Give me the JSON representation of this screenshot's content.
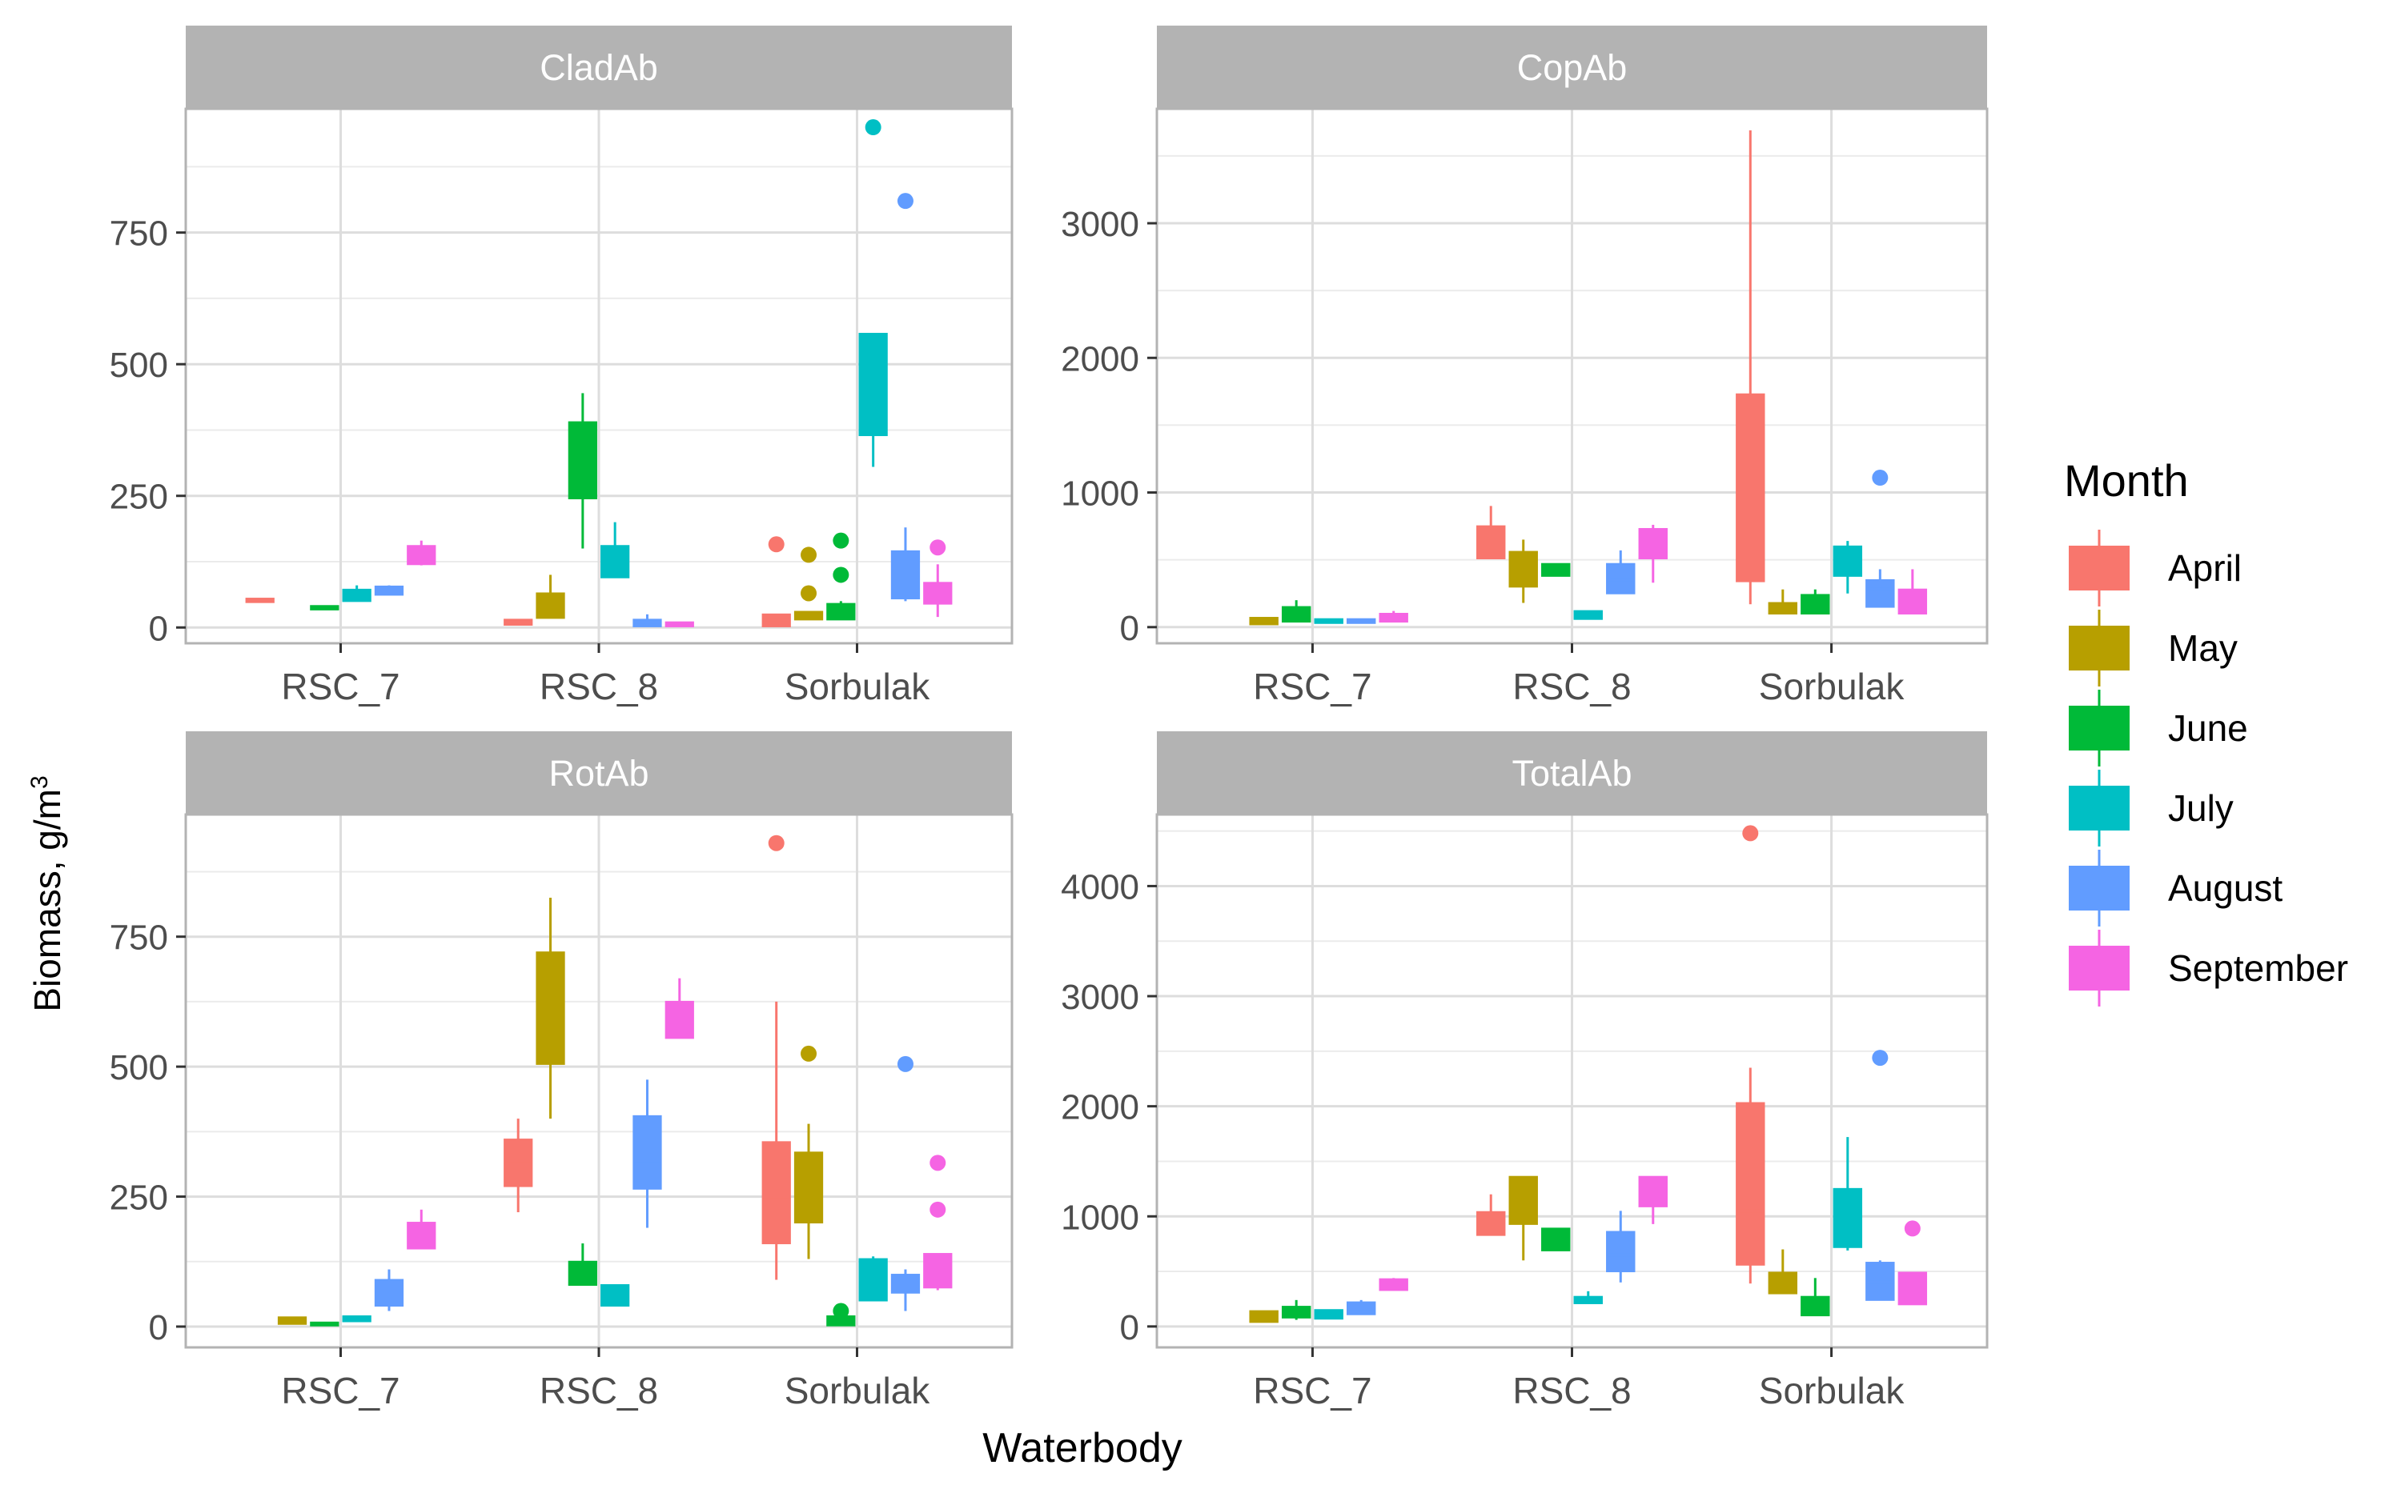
{
  "ylabel": "Biomass, g/m",
  "ylabel_superscript": "3",
  "xlabel": "Waterbody",
  "legend": {
    "title": "Month",
    "position": "right",
    "items": [
      {
        "label": "April",
        "color": "#F8766D"
      },
      {
        "label": "May",
        "color": "#B79F00"
      },
      {
        "label": "June",
        "color": "#00BA38"
      },
      {
        "label": "July",
        "color": "#00BFC4"
      },
      {
        "label": "August",
        "color": "#619CFF"
      },
      {
        "label": "September",
        "color": "#F564E3"
      }
    ]
  },
  "chart_data": [
    {
      "type": "boxplot",
      "title": "CladAb",
      "categories": [
        "RSC_7",
        "RSC_8",
        "Sorbulak"
      ],
      "yticks": [
        0,
        250,
        500,
        750
      ],
      "ylim": [
        -30,
        985
      ],
      "grid": true,
      "boxes": [
        {
          "category": "RSC_7",
          "month": "April",
          "min": 48,
          "q1": 48,
          "median": 52,
          "q3": 55,
          "max": 55,
          "outliers": []
        },
        {
          "category": "RSC_7",
          "month": "June",
          "min": 34,
          "q1": 34,
          "median": 37,
          "q3": 41,
          "max": 41,
          "outliers": []
        },
        {
          "category": "RSC_7",
          "month": "July",
          "min": 50,
          "q1": 50,
          "median": 60,
          "q3": 72,
          "max": 80,
          "outliers": []
        },
        {
          "category": "RSC_7",
          "month": "August",
          "min": 62,
          "q1": 62,
          "median": 68,
          "q3": 78,
          "max": 80,
          "outliers": []
        },
        {
          "category": "RSC_7",
          "month": "September",
          "min": 118,
          "q1": 120,
          "median": 130,
          "q3": 155,
          "max": 165,
          "outliers": []
        },
        {
          "category": "RSC_8",
          "month": "April",
          "min": 5,
          "q1": 5,
          "median": 10,
          "q3": 15,
          "max": 15,
          "outliers": []
        },
        {
          "category": "RSC_8",
          "month": "May",
          "min": 18,
          "q1": 18,
          "median": 22,
          "q3": 65,
          "max": 100,
          "outliers": []
        },
        {
          "category": "RSC_8",
          "month": "June",
          "min": 150,
          "q1": 245,
          "median": 322,
          "q3": 390,
          "max": 445,
          "outliers": []
        },
        {
          "category": "RSC_8",
          "month": "July",
          "min": 95,
          "q1": 95,
          "median": 120,
          "q3": 155,
          "max": 200,
          "outliers": []
        },
        {
          "category": "RSC_8",
          "month": "August",
          "min": 2,
          "q1": 2,
          "median": 10,
          "q3": 15,
          "max": 25,
          "outliers": []
        },
        {
          "category": "RSC_8",
          "month": "September",
          "min": 2,
          "q1": 2,
          "median": 5,
          "q3": 10,
          "max": 10,
          "outliers": []
        },
        {
          "category": "Sorbulak",
          "month": "April",
          "min": 2,
          "q1": 2,
          "median": 15,
          "q3": 25,
          "max": 25,
          "outliers": [
            158
          ]
        },
        {
          "category": "Sorbulak",
          "month": "May",
          "min": 15,
          "q1": 15,
          "median": 25,
          "q3": 30,
          "max": 30,
          "outliers": [
            138,
            65
          ]
        },
        {
          "category": "Sorbulak",
          "month": "June",
          "min": 15,
          "q1": 15,
          "median": 30,
          "q3": 45,
          "max": 50,
          "outliers": [
            165,
            100
          ]
        },
        {
          "category": "Sorbulak",
          "month": "July",
          "min": 305,
          "q1": 365,
          "median": 420,
          "q3": 558,
          "max": 558,
          "outliers": [
            950
          ]
        },
        {
          "category": "Sorbulak",
          "month": "August",
          "min": 50,
          "q1": 55,
          "median": 100,
          "q3": 145,
          "max": 190,
          "outliers": [
            810
          ]
        },
        {
          "category": "Sorbulak",
          "month": "September",
          "min": 20,
          "q1": 45,
          "median": 70,
          "q3": 85,
          "max": 120,
          "outliers": [
            152
          ]
        }
      ]
    },
    {
      "type": "boxplot",
      "title": "CopAb",
      "categories": [
        "RSC_7",
        "RSC_8",
        "Sorbulak"
      ],
      "yticks": [
        0,
        1000,
        2000,
        3000
      ],
      "ylim": [
        -120,
        3850
      ],
      "grid": true,
      "boxes": [
        {
          "category": "RSC_7",
          "month": "May",
          "min": 20,
          "q1": 20,
          "median": 40,
          "q3": 70,
          "max": 70,
          "outliers": []
        },
        {
          "category": "RSC_7",
          "month": "June",
          "min": 40,
          "q1": 40,
          "median": 90,
          "q3": 150,
          "max": 200,
          "outliers": []
        },
        {
          "category": "RSC_7",
          "month": "July",
          "min": 30,
          "q1": 30,
          "median": 50,
          "q3": 60,
          "max": 60,
          "outliers": []
        },
        {
          "category": "RSC_7",
          "month": "August",
          "min": 30,
          "q1": 30,
          "median": 50,
          "q3": 60,
          "max": 60,
          "outliers": []
        },
        {
          "category": "RSC_7",
          "month": "September",
          "min": 40,
          "q1": 40,
          "median": 70,
          "q3": 100,
          "max": 120,
          "outliers": []
        },
        {
          "category": "RSC_8",
          "month": "April",
          "min": 510,
          "q1": 510,
          "median": 540,
          "q3": 750,
          "max": 900,
          "outliers": []
        },
        {
          "category": "RSC_8",
          "month": "May",
          "min": 180,
          "q1": 300,
          "median": 440,
          "q3": 560,
          "max": 650,
          "outliers": []
        },
        {
          "category": "RSC_8",
          "month": "June",
          "min": 380,
          "q1": 380,
          "median": 420,
          "q3": 470,
          "max": 470,
          "outliers": []
        },
        {
          "category": "RSC_8",
          "month": "July",
          "min": 60,
          "q1": 60,
          "median": 80,
          "q3": 120,
          "max": 120,
          "outliers": []
        },
        {
          "category": "RSC_8",
          "month": "August",
          "min": 250,
          "q1": 250,
          "median": 350,
          "q3": 470,
          "max": 570,
          "outliers": []
        },
        {
          "category": "RSC_8",
          "month": "September",
          "min": 330,
          "q1": 510,
          "median": 560,
          "q3": 730,
          "max": 760,
          "outliers": []
        },
        {
          "category": "Sorbulak",
          "month": "April",
          "min": 170,
          "q1": 340,
          "median": 1000,
          "q3": 1730,
          "max": 3690,
          "outliers": []
        },
        {
          "category": "Sorbulak",
          "month": "May",
          "min": 100,
          "q1": 100,
          "median": 150,
          "q3": 180,
          "max": 280,
          "outliers": []
        },
        {
          "category": "Sorbulak",
          "month": "June",
          "min": 100,
          "q1": 100,
          "median": 180,
          "q3": 240,
          "max": 280,
          "outliers": []
        },
        {
          "category": "Sorbulak",
          "month": "July",
          "min": 250,
          "q1": 380,
          "median": 520,
          "q3": 600,
          "max": 640,
          "outliers": []
        },
        {
          "category": "Sorbulak",
          "month": "August",
          "min": 150,
          "q1": 150,
          "median": 280,
          "q3": 350,
          "max": 430,
          "outliers": [
            1110
          ]
        },
        {
          "category": "Sorbulak",
          "month": "September",
          "min": 100,
          "q1": 100,
          "median": 200,
          "q3": 280,
          "max": 430,
          "outliers": []
        }
      ]
    },
    {
      "type": "boxplot",
      "title": "RotAb",
      "categories": [
        "RSC_7",
        "RSC_8",
        "Sorbulak"
      ],
      "yticks": [
        0,
        250,
        500,
        750
      ],
      "ylim": [
        -40,
        985
      ],
      "grid": true,
      "boxes": [
        {
          "category": "RSC_7",
          "month": "May",
          "min": 5,
          "q1": 5,
          "median": 12,
          "q3": 18,
          "max": 18,
          "outliers": []
        },
        {
          "category": "RSC_7",
          "month": "June",
          "min": 2,
          "q1": 2,
          "median": 5,
          "q3": 8,
          "max": 8,
          "outliers": []
        },
        {
          "category": "RSC_7",
          "month": "July",
          "min": 10,
          "q1": 10,
          "median": 15,
          "q3": 20,
          "max": 20,
          "outliers": []
        },
        {
          "category": "RSC_7",
          "month": "August",
          "min": 30,
          "q1": 40,
          "median": 60,
          "q3": 90,
          "max": 110,
          "outliers": []
        },
        {
          "category": "RSC_7",
          "month": "September",
          "min": 150,
          "q1": 150,
          "median": 180,
          "q3": 200,
          "max": 225,
          "outliers": []
        },
        {
          "category": "RSC_8",
          "month": "April",
          "min": 220,
          "q1": 270,
          "median": 320,
          "q3": 360,
          "max": 400,
          "outliers": []
        },
        {
          "category": "RSC_8",
          "month": "May",
          "min": 400,
          "q1": 505,
          "median": 600,
          "q3": 720,
          "max": 825,
          "outliers": []
        },
        {
          "category": "RSC_8",
          "month": "June",
          "min": 80,
          "q1": 80,
          "median": 110,
          "q3": 125,
          "max": 160,
          "outliers": []
        },
        {
          "category": "RSC_8",
          "month": "July",
          "min": 40,
          "q1": 40,
          "median": 60,
          "q3": 80,
          "max": 80,
          "outliers": []
        },
        {
          "category": "RSC_8",
          "month": "August",
          "min": 190,
          "q1": 265,
          "median": 320,
          "q3": 405,
          "max": 475,
          "outliers": []
        },
        {
          "category": "RSC_8",
          "month": "September",
          "min": 555,
          "q1": 555,
          "median": 590,
          "q3": 625,
          "max": 670,
          "outliers": []
        },
        {
          "category": "Sorbulak",
          "month": "April",
          "min": 90,
          "q1": 160,
          "median": 250,
          "q3": 355,
          "max": 625,
          "outliers": [
            930
          ]
        },
        {
          "category": "Sorbulak",
          "month": "May",
          "min": 130,
          "q1": 200,
          "median": 260,
          "q3": 335,
          "max": 390,
          "outliers": [
            525
          ]
        },
        {
          "category": "Sorbulak",
          "month": "June",
          "min": 2,
          "q1": 2,
          "median": 10,
          "q3": 20,
          "max": 25,
          "outliers": [
            30
          ]
        },
        {
          "category": "Sorbulak",
          "month": "July",
          "min": 50,
          "q1": 50,
          "median": 90,
          "q3": 130,
          "max": 135,
          "outliers": []
        },
        {
          "category": "Sorbulak",
          "month": "August",
          "min": 30,
          "q1": 65,
          "median": 80,
          "q3": 100,
          "max": 110,
          "outliers": [
            505
          ]
        },
        {
          "category": "Sorbulak",
          "month": "September",
          "min": 70,
          "q1": 75,
          "median": 100,
          "q3": 140,
          "max": 140,
          "outliers": [
            315,
            225
          ]
        }
      ]
    },
    {
      "type": "boxplot",
      "title": "TotalAb",
      "categories": [
        "RSC_7",
        "RSC_8",
        "Sorbulak"
      ],
      "yticks": [
        0,
        1000,
        2000,
        3000,
        4000
      ],
      "ylim": [
        -190,
        4650
      ],
      "grid": true,
      "boxes": [
        {
          "category": "RSC_7",
          "month": "May",
          "min": 40,
          "q1": 40,
          "median": 80,
          "q3": 140,
          "max": 140,
          "outliers": []
        },
        {
          "category": "RSC_7",
          "month": "June",
          "min": 60,
          "q1": 80,
          "median": 130,
          "q3": 180,
          "max": 240,
          "outliers": []
        },
        {
          "category": "RSC_7",
          "month": "July",
          "min": 70,
          "q1": 70,
          "median": 100,
          "q3": 150,
          "max": 150,
          "outliers": []
        },
        {
          "category": "RSC_7",
          "month": "August",
          "min": 110,
          "q1": 110,
          "median": 160,
          "q3": 220,
          "max": 240,
          "outliers": []
        },
        {
          "category": "RSC_7",
          "month": "September",
          "min": 330,
          "q1": 330,
          "median": 360,
          "q3": 430,
          "max": 440,
          "outliers": []
        },
        {
          "category": "RSC_8",
          "month": "April",
          "min": 830,
          "q1": 830,
          "median": 900,
          "q3": 1040,
          "max": 1200,
          "outliers": []
        },
        {
          "category": "RSC_8",
          "month": "May",
          "min": 600,
          "q1": 930,
          "median": 1200,
          "q3": 1360,
          "max": 1360,
          "outliers": []
        },
        {
          "category": "RSC_8",
          "month": "June",
          "min": 690,
          "q1": 690,
          "median": 790,
          "q3": 890,
          "max": 890,
          "outliers": []
        },
        {
          "category": "RSC_8",
          "month": "July",
          "min": 210,
          "q1": 210,
          "median": 240,
          "q3": 270,
          "max": 320,
          "outliers": []
        },
        {
          "category": "RSC_8",
          "month": "August",
          "min": 400,
          "q1": 500,
          "median": 650,
          "q3": 860,
          "max": 1050,
          "outliers": []
        },
        {
          "category": "RSC_8",
          "month": "September",
          "min": 930,
          "q1": 1090,
          "median": 1230,
          "q3": 1360,
          "max": 1360,
          "outliers": []
        },
        {
          "category": "Sorbulak",
          "month": "April",
          "min": 390,
          "q1": 560,
          "median": 1050,
          "q3": 2030,
          "max": 2350,
          "outliers": [
            4480
          ]
        },
        {
          "category": "Sorbulak",
          "month": "May",
          "min": 300,
          "q1": 300,
          "median": 400,
          "q3": 490,
          "max": 700,
          "outliers": []
        },
        {
          "category": "Sorbulak",
          "month": "June",
          "min": 100,
          "q1": 100,
          "median": 150,
          "q3": 270,
          "max": 440,
          "outliers": []
        },
        {
          "category": "Sorbulak",
          "month": "July",
          "min": 690,
          "q1": 720,
          "median": 950,
          "q3": 1250,
          "max": 1720,
          "outliers": []
        },
        {
          "category": "Sorbulak",
          "month": "August",
          "min": 240,
          "q1": 240,
          "median": 400,
          "q3": 580,
          "max": 600,
          "outliers": [
            2440
          ]
        },
        {
          "category": "Sorbulak",
          "month": "September",
          "min": 200,
          "q1": 200,
          "median": 300,
          "q3": 490,
          "max": 490,
          "outliers": [
            890
          ]
        }
      ]
    }
  ]
}
